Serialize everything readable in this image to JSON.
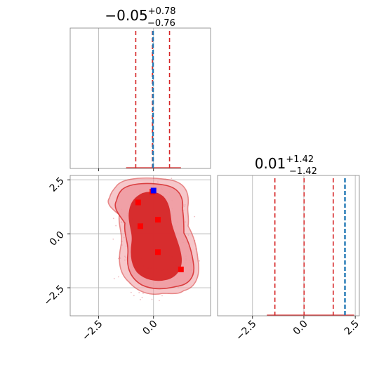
{
  "chart_data": [
    {
      "type": "histogram",
      "panel": "marginal-param-1",
      "title": {
        "median": "−0.05",
        "plus": "+0.78",
        "minus": "−0.76"
      },
      "xlim": [
        -3.8,
        2.6
      ],
      "grid": true,
      "quantiles": [
        -0.81,
        -0.05,
        0.73
      ],
      "truth": -0.02,
      "colors": {
        "posterior": "#d62728",
        "truth": "#1f77b4",
        "grid": "#b0b0b0"
      }
    },
    {
      "type": "histogram",
      "panel": "marginal-param-2",
      "title": {
        "median": "0.01",
        "plus": "+1.42",
        "minus": "−1.42"
      },
      "xlim": [
        -4.2,
        2.7
      ],
      "xticks": [
        {
          "value": -2.5,
          "label": "−2.5"
        },
        {
          "value": 0.0,
          "label": "0.0"
        },
        {
          "value": 2.5,
          "label": "2.5"
        }
      ],
      "grid": true,
      "quantiles": [
        -1.41,
        0.01,
        1.43
      ],
      "truth": 2.0,
      "colors": {
        "posterior": "#d62728",
        "truth": "#1f77b4",
        "grid": "#b0b0b0"
      }
    },
    {
      "type": "scatter",
      "panel": "joint-2d",
      "xlim": [
        -3.8,
        2.6
      ],
      "ylim": [
        -3.8,
        2.7
      ],
      "xticks": [
        {
          "value": -2.5,
          "label": "−2.5"
        },
        {
          "value": 0.0,
          "label": "0.0"
        }
      ],
      "yticks": [
        {
          "value": 2.5,
          "label": "2.5"
        },
        {
          "value": 0.0,
          "label": "0.0"
        },
        {
          "value": -2.5,
          "label": "−2.5"
        }
      ],
      "grid": true,
      "points": [
        {
          "x": -0.7,
          "y": 1.45
        },
        {
          "x": -0.6,
          "y": 0.35
        },
        {
          "x": 0.2,
          "y": 0.65
        },
        {
          "x": 0.2,
          "y": -0.85
        },
        {
          "x": 1.25,
          "y": -1.65
        },
        {
          "x": -0.05,
          "y": 1.95
        }
      ],
      "truth_point": {
        "x": 0.0,
        "y": 2.0
      },
      "colors": {
        "points": "#ff0000",
        "truth": "#0000ff",
        "fill_dark": "#d62728",
        "fill_light": "#ef9aa0",
        "contour": "#d62728"
      }
    }
  ]
}
